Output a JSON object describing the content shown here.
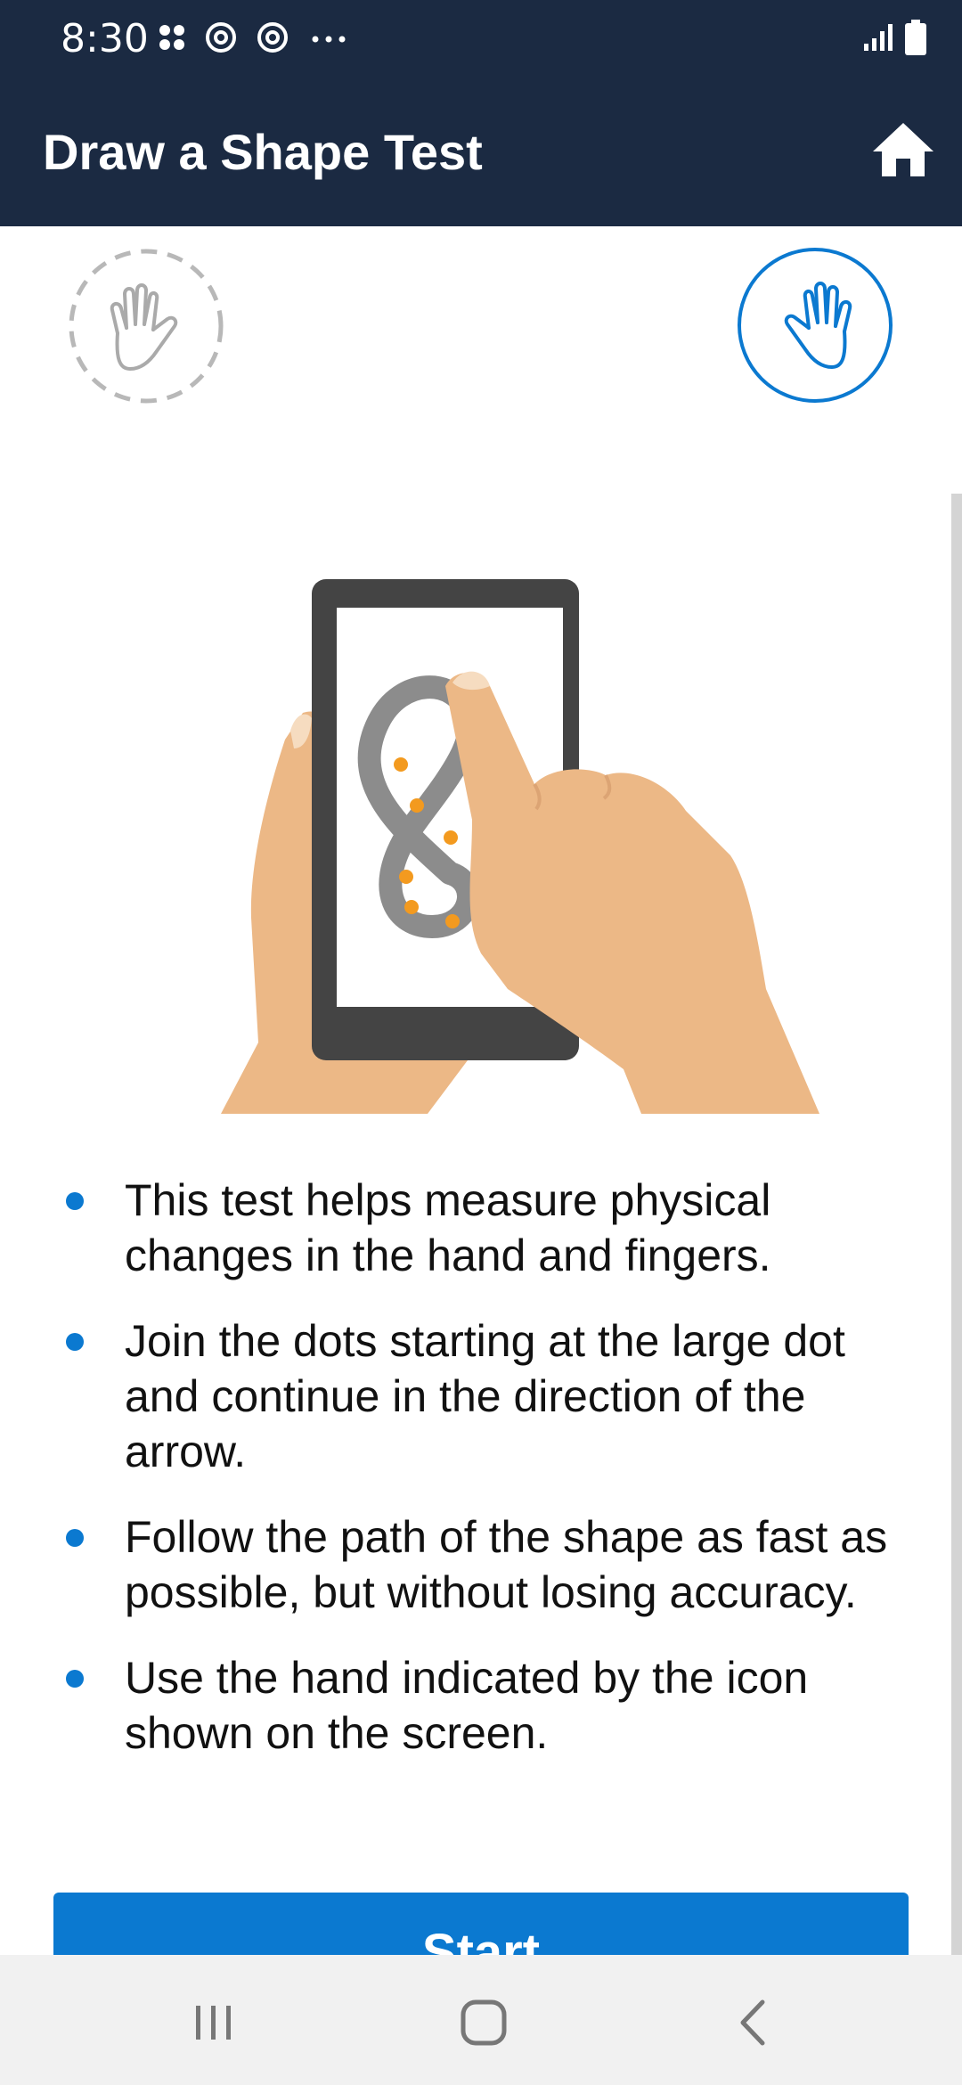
{
  "status_bar": {
    "time": "8:30",
    "icons_left": [
      "apps-icon",
      "sync-icon",
      "sync-icon",
      "more-dots-icon"
    ],
    "icons_right": [
      "signal-icon",
      "battery-icon"
    ]
  },
  "app_bar": {
    "title": "Draw a Shape Test",
    "home_icon": "home-icon"
  },
  "hand_selector": {
    "left_hand": {
      "icon": "left-hand-icon",
      "state": "inactive"
    },
    "right_hand": {
      "icon": "right-hand-icon",
      "state": "active"
    }
  },
  "instructions": [
    "This test helps measure physical changes in the hand and fingers.",
    "Join the dots starting at the large dot and continue in the direction of the arrow.",
    "Follow the path of the shape as fast as possible, but without losing accuracy.",
    "Use the hand indicated by the icon shown on the screen."
  ],
  "start_button": {
    "label": "Start"
  },
  "nav_bar": {
    "icons": [
      "recents-icon",
      "home-circle-icon",
      "back-icon"
    ]
  },
  "colors": {
    "header": "#1b2a42",
    "accent": "#0b79d0",
    "skin": "#ecb886",
    "phone": "#444444",
    "dot": "#f39a1f"
  }
}
